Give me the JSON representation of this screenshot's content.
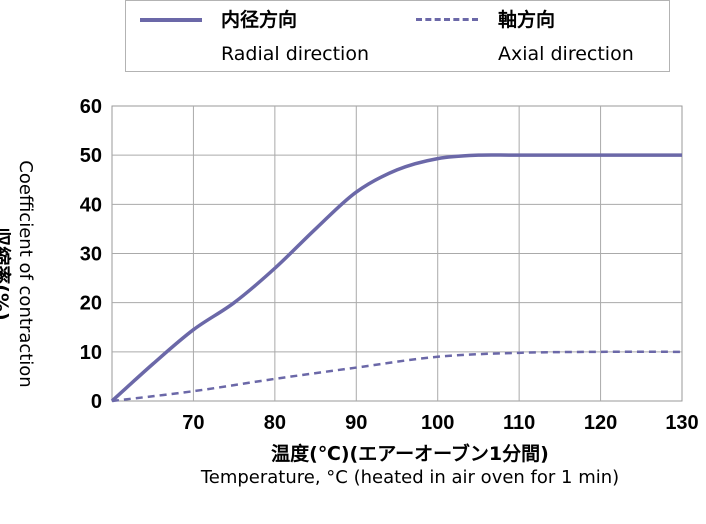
{
  "legend": {
    "radial_ja": "内径方向",
    "radial_en": "Radial direction",
    "axial_ja": "軸方向",
    "axial_en": "Axial direction"
  },
  "colors": {
    "series": "#6b68a8",
    "grid": "#aaaaaa",
    "axis": "#999999"
  },
  "chart_data": {
    "type": "line",
    "title": "",
    "xlabel": "温度(℃)(エアーオーブン1分間)",
    "xlabel_en": "Temperature, °C (heated in air oven for 1 min)",
    "ylabel": "収縮率(%)",
    "ylabel_en": "Coefficient of contraction",
    "xlim": [
      60,
      130
    ],
    "ylim": [
      0,
      60
    ],
    "xticks": [
      70,
      80,
      90,
      100,
      110,
      120,
      130
    ],
    "yticks": [
      0,
      10,
      20,
      30,
      40,
      50,
      60
    ],
    "grid": true,
    "legend_position": "top",
    "series": [
      {
        "name": "内径方向 Radial direction",
        "style": "solid",
        "x": [
          60,
          65,
          70,
          75,
          80,
          85,
          90,
          95,
          100,
          105,
          110,
          120,
          130
        ],
        "y": [
          0,
          7.5,
          14.5,
          20,
          27,
          35,
          42.5,
          47,
          49.3,
          50,
          50,
          50,
          50
        ]
      },
      {
        "name": "軸方向 Axial direction",
        "style": "dashed",
        "x": [
          60,
          70,
          80,
          90,
          100,
          110,
          120,
          130
        ],
        "y": [
          0,
          2,
          4.5,
          6.8,
          9,
          9.8,
          10,
          10
        ]
      }
    ]
  }
}
